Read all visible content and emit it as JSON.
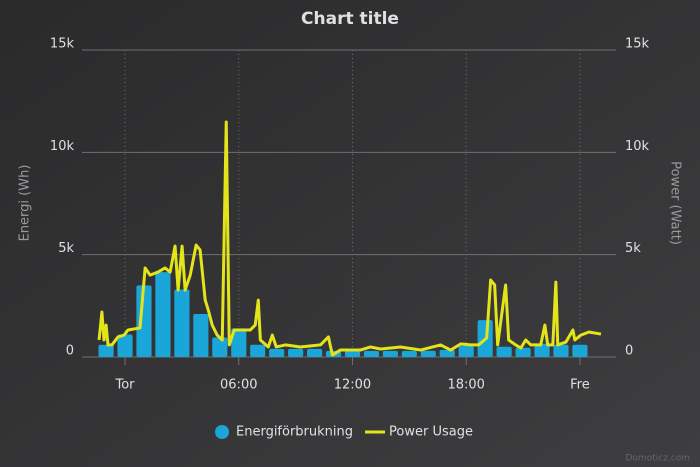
{
  "chart_data": {
    "type": "combo",
    "title": "Chart title",
    "y_label": "Energi (Wh)",
    "y2_label": "Power (Watt)",
    "credits": "Domoticz.com",
    "grid": true,
    "legend": "bottom",
    "xlim": [
      -2.27,
      25.85
    ],
    "xticks": [
      {
        "value": 0,
        "label": "Tor"
      },
      {
        "value": 6,
        "label": "06:00"
      },
      {
        "value": 12,
        "label": "12:00"
      },
      {
        "value": 18,
        "label": "18:00"
      },
      {
        "value": 24,
        "label": "Fre"
      }
    ],
    "ylim": [
      0,
      15000
    ],
    "yticks": [
      0,
      {
        "value": 5000,
        "label": "5k"
      },
      {
        "value": 10000,
        "label": "10k"
      },
      {
        "value": 15000,
        "label": "15k"
      }
    ],
    "y2lim": [
      0,
      15000
    ],
    "y2ticks": [
      0,
      {
        "value": 5000,
        "label": "5k"
      },
      {
        "value": 10000,
        "label": "10k"
      },
      {
        "value": 15000,
        "label": "15k"
      }
    ],
    "series": [
      {
        "name": "Energiförbrukning",
        "type": "column",
        "color": "#1aa6d8",
        "x": [
          -1,
          0,
          1,
          2,
          3,
          4,
          5,
          6,
          7,
          8,
          9,
          10,
          11,
          12,
          13,
          14,
          15,
          16,
          17,
          18,
          19,
          20,
          21,
          22,
          23,
          24
        ],
        "values": [
          600,
          1100,
          3500,
          4150,
          3300,
          2100,
          950,
          1400,
          600,
          400,
          400,
          400,
          300,
          300,
          300,
          300,
          300,
          300,
          350,
          550,
          1800,
          500,
          450,
          650,
          600,
          600
        ]
      },
      {
        "name": "Power Usage",
        "type": "line",
        "color": "#e3e41a",
        "axis": "y2",
        "x": [
          -1.37,
          -1.22,
          -1.11,
          -1.0,
          -0.9,
          -0.69,
          -0.37,
          -0.05,
          0.16,
          0.79,
          1.06,
          1.32,
          1.74,
          2.11,
          2.38,
          2.64,
          2.8,
          3.01,
          3.17,
          3.44,
          3.75,
          3.96,
          4.23,
          4.39,
          4.6,
          4.86,
          5.13,
          5.34,
          5.5,
          5.76,
          6.18,
          6.61,
          6.87,
          7.03,
          7.14,
          7.56,
          7.77,
          7.98,
          8.46,
          9.25,
          10.31,
          10.73,
          10.94,
          11.36,
          12.42,
          12.95,
          13.48,
          14.53,
          15.59,
          16.65,
          17.18,
          17.71,
          18.23,
          18.66,
          19.08,
          19.29,
          19.5,
          19.66,
          20.08,
          20.24,
          20.61,
          20.88,
          21.14,
          21.41,
          21.93,
          22.15,
          22.3,
          22.57,
          22.73,
          22.83,
          23.26,
          23.63,
          23.73,
          24.05,
          24.47,
          25.11
        ],
        "values": [
          830,
          2200,
          830,
          1560,
          590,
          590,
          980,
          1070,
          1320,
          1420,
          4350,
          4000,
          4150,
          4350,
          4150,
          5420,
          3270,
          5420,
          3270,
          4000,
          5470,
          5230,
          2780,
          2300,
          1560,
          1070,
          830,
          11480,
          590,
          1320,
          1320,
          1320,
          1560,
          2780,
          830,
          490,
          1070,
          490,
          590,
          490,
          590,
          980,
          100,
          340,
          340,
          490,
          390,
          490,
          340,
          590,
          340,
          640,
          590,
          590,
          930,
          3760,
          3520,
          590,
          3520,
          830,
          590,
          440,
          830,
          590,
          590,
          1560,
          590,
          590,
          3660,
          590,
          730,
          1320,
          830,
          1070,
          1220,
          1120
        ]
      }
    ]
  }
}
